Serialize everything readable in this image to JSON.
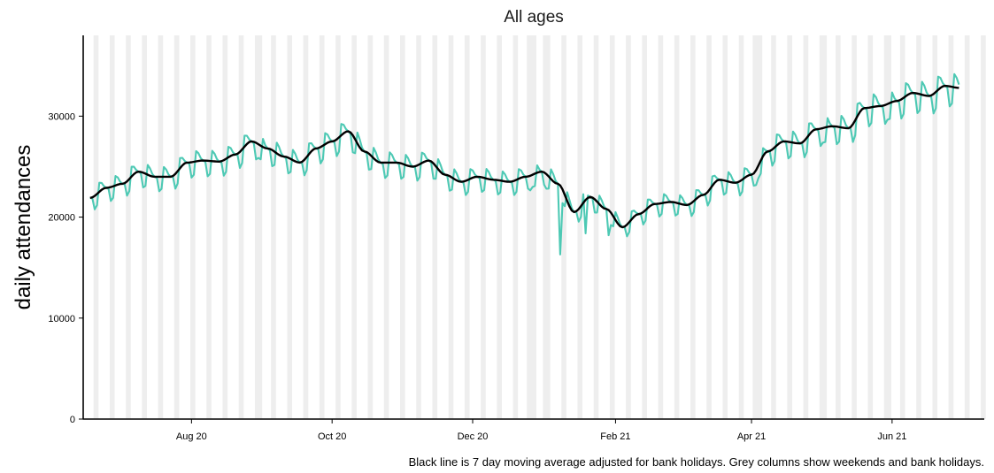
{
  "chart_data": {
    "type": "line",
    "title": "All ages",
    "ylabel": "daily attendances",
    "xlabel": "",
    "caption": "Black line is 7 day moving average adjusted for bank holidays. Grey columns show weekends and bank holidays.",
    "x_start": "2020-06-18",
    "x_end": "2021-06-30",
    "xlim": [
      "2020-06-15",
      "2021-07-11"
    ],
    "ylim": [
      0,
      38000
    ],
    "y_ticks": [
      0,
      10000,
      20000,
      30000
    ],
    "y_tick_labels": [
      "0",
      "10000",
      "20000",
      "30000"
    ],
    "x_ticks": [
      "2020-08-01",
      "2020-10-01",
      "2020-12-01",
      "2021-02-01",
      "2021-04-01",
      "2021-06-01"
    ],
    "x_tick_labels": [
      "Aug 20",
      "Oct 20",
      "Dec 20",
      "Feb 21",
      "Apr 21",
      "Jun 21"
    ],
    "bank_holidays": [
      "2020-08-31",
      "2020-12-25",
      "2020-12-28",
      "2021-01-01",
      "2021-04-02",
      "2021-04-05",
      "2021-05-03",
      "2021-05-31"
    ],
    "raw_series_color": "#4dc9b4",
    "avg_series_color": "#000000",
    "weekend_column_color": "#eeeeee",
    "anchors": [
      [
        "2020-06-18",
        21900
      ],
      [
        "2020-06-25",
        22900
      ],
      [
        "2020-07-02",
        23300
      ],
      [
        "2020-07-09",
        24500
      ],
      [
        "2020-07-16",
        24000
      ],
      [
        "2020-07-23",
        24000
      ],
      [
        "2020-07-30",
        25400
      ],
      [
        "2020-08-06",
        25600
      ],
      [
        "2020-08-13",
        25500
      ],
      [
        "2020-08-20",
        26200
      ],
      [
        "2020-08-27",
        27500
      ],
      [
        "2020-09-03",
        26800
      ],
      [
        "2020-09-10",
        26000
      ],
      [
        "2020-09-17",
        25400
      ],
      [
        "2020-09-24",
        26800
      ],
      [
        "2020-10-01",
        27500
      ],
      [
        "2020-10-08",
        28500
      ],
      [
        "2020-10-15",
        26500
      ],
      [
        "2020-10-22",
        25400
      ],
      [
        "2020-10-29",
        25400
      ],
      [
        "2020-11-05",
        25000
      ],
      [
        "2020-11-12",
        25600
      ],
      [
        "2020-11-19",
        24200
      ],
      [
        "2020-11-26",
        23500
      ],
      [
        "2020-12-03",
        24000
      ],
      [
        "2020-12-10",
        23700
      ],
      [
        "2020-12-17",
        23500
      ],
      [
        "2020-12-24",
        24000
      ],
      [
        "2020-12-31",
        24500
      ],
      [
        "2021-01-07",
        23300
      ],
      [
        "2021-01-14",
        20500
      ],
      [
        "2021-01-21",
        22000
      ],
      [
        "2021-01-28",
        20800
      ],
      [
        "2021-02-04",
        19000
      ],
      [
        "2021-02-11",
        20300
      ],
      [
        "2021-02-18",
        21300
      ],
      [
        "2021-02-25",
        21500
      ],
      [
        "2021-03-04",
        21200
      ],
      [
        "2021-03-11",
        22200
      ],
      [
        "2021-03-18",
        23700
      ],
      [
        "2021-03-25",
        23400
      ],
      [
        "2021-04-01",
        24200
      ],
      [
        "2021-04-08",
        26500
      ],
      [
        "2021-04-15",
        27500
      ],
      [
        "2021-04-22",
        27300
      ],
      [
        "2021-04-29",
        28700
      ],
      [
        "2021-05-06",
        29000
      ],
      [
        "2021-05-13",
        28800
      ],
      [
        "2021-05-20",
        30800
      ],
      [
        "2021-05-27",
        31000
      ],
      [
        "2021-06-03",
        31500
      ],
      [
        "2021-06-10",
        32300
      ],
      [
        "2021-06-17",
        32000
      ],
      [
        "2021-06-24",
        33000
      ],
      [
        "2021-06-30",
        32800
      ]
    ],
    "dips": [
      [
        "2021-01-08",
        16300
      ],
      [
        "2021-01-19",
        18400
      ],
      [
        "2021-01-29",
        18200
      ]
    ]
  }
}
